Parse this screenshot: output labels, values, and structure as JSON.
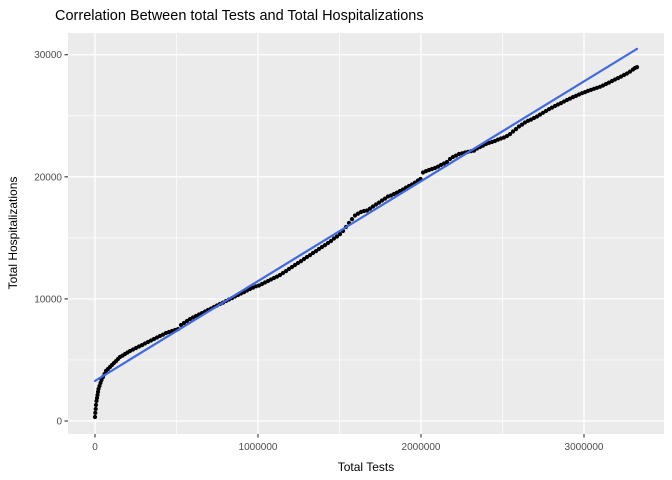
{
  "title": "Correlation Between total Tests and Total Hospitalizations",
  "colors": {
    "panel_background": "#EBEBEB",
    "grid_major": "#FFFFFF",
    "grid_minor": "#FFFFFF",
    "point": "#000000",
    "trend": "#4169E1",
    "tick_mark": "#333333",
    "tick_label": "#4D4D4D",
    "text": "#000000",
    "figure_background": "#FFFFFF"
  },
  "chart_data": {
    "type": "scatter",
    "title": "Correlation Between total Tests and Total Hospitalizations",
    "xlabel": "Total Tests",
    "ylabel": "Total Hospitalizations",
    "legend": "none",
    "grid": true,
    "xlim": [
      -165600,
      3490800
    ],
    "ylim": [
      -1065,
      31780
    ],
    "x_ticks": {
      "values": [
        0,
        1000000,
        2000000,
        3000000
      ],
      "labels": [
        "0",
        "1000000",
        "2000000",
        "3000000"
      ]
    },
    "y_ticks": {
      "values": [
        0,
        10000,
        20000,
        30000
      ],
      "labels": [
        "0",
        "10000",
        "20000",
        "30000"
      ]
    },
    "x_minor": [
      500000,
      1500000,
      2500000
    ],
    "y_minor": [
      5000,
      15000,
      25000
    ],
    "trend_line": {
      "type": "linear",
      "x": [
        0,
        3325200
      ],
      "y": [
        3280,
        30480
      ]
    },
    "points": [
      [
        0,
        330
      ],
      [
        2000,
        660
      ],
      [
        4100,
        980
      ],
      [
        6100,
        1310
      ],
      [
        9200,
        1640
      ],
      [
        12300,
        1880
      ],
      [
        15300,
        2130
      ],
      [
        18400,
        2380
      ],
      [
        21500,
        2620
      ],
      [
        27600,
        2870
      ],
      [
        33700,
        3110
      ],
      [
        39900,
        3360
      ],
      [
        49100,
        3600
      ],
      [
        58300,
        3850
      ],
      [
        67500,
        4100
      ],
      [
        79800,
        4260
      ],
      [
        92000,
        4420
      ],
      [
        104300,
        4590
      ],
      [
        116600,
        4750
      ],
      [
        128800,
        4910
      ],
      [
        141100,
        5080
      ],
      [
        153400,
        5240
      ],
      [
        168700,
        5360
      ],
      [
        184100,
        5490
      ],
      [
        199400,
        5610
      ],
      [
        214700,
        5730
      ],
      [
        233100,
        5860
      ],
      [
        251500,
        5980
      ],
      [
        269900,
        6100
      ],
      [
        288300,
        6220
      ],
      [
        306800,
        6350
      ],
      [
        325200,
        6470
      ],
      [
        343600,
        6590
      ],
      [
        362000,
        6720
      ],
      [
        380400,
        6840
      ],
      [
        398800,
        6960
      ],
      [
        417200,
        7080
      ],
      [
        435600,
        7210
      ],
      [
        454000,
        7290
      ],
      [
        472400,
        7370
      ],
      [
        490800,
        7450
      ],
      [
        509200,
        7530
      ],
      [
        527600,
        7860
      ],
      [
        546000,
        8030
      ],
      [
        564400,
        8190
      ],
      [
        582800,
        8350
      ],
      [
        601200,
        8480
      ],
      [
        619600,
        8600
      ],
      [
        638000,
        8720
      ],
      [
        656400,
        8840
      ],
      [
        674900,
        8970
      ],
      [
        693300,
        9090
      ],
      [
        711700,
        9210
      ],
      [
        730100,
        9340
      ],
      [
        748500,
        9460
      ],
      [
        766900,
        9580
      ],
      [
        785300,
        9700
      ],
      [
        803700,
        9830
      ],
      [
        822100,
        9950
      ],
      [
        840500,
        10070
      ],
      [
        858900,
        10200
      ],
      [
        877300,
        10320
      ],
      [
        895700,
        10440
      ],
      [
        914100,
        10560
      ],
      [
        932500,
        10690
      ],
      [
        950900,
        10810
      ],
      [
        969300,
        10930
      ],
      [
        987800,
        11030
      ],
      [
        1006200,
        11100
      ],
      [
        1024600,
        11220
      ],
      [
        1043000,
        11340
      ],
      [
        1061400,
        11470
      ],
      [
        1079800,
        11590
      ],
      [
        1098200,
        11710
      ],
      [
        1116600,
        11830
      ],
      [
        1135000,
        11960
      ],
      [
        1153400,
        12120
      ],
      [
        1171800,
        12280
      ],
      [
        1190200,
        12450
      ],
      [
        1208600,
        12610
      ],
      [
        1227000,
        12780
      ],
      [
        1245400,
        12940
      ],
      [
        1263800,
        13100
      ],
      [
        1282200,
        13270
      ],
      [
        1300700,
        13430
      ],
      [
        1319100,
        13590
      ],
      [
        1337500,
        13760
      ],
      [
        1355900,
        13920
      ],
      [
        1374300,
        14090
      ],
      [
        1392700,
        14250
      ],
      [
        1411100,
        14410
      ],
      [
        1429500,
        14580
      ],
      [
        1447900,
        14740
      ],
      [
        1466300,
        14950
      ],
      [
        1484700,
        15110
      ],
      [
        1503100,
        15310
      ],
      [
        1521500,
        15560
      ],
      [
        1539900,
        15890
      ],
      [
        1558300,
        16220
      ],
      [
        1576700,
        16540
      ],
      [
        1595100,
        16830
      ],
      [
        1613500,
        16990
      ],
      [
        1631900,
        17120
      ],
      [
        1650300,
        17200
      ],
      [
        1668800,
        17240
      ],
      [
        1687200,
        17400
      ],
      [
        1705600,
        17570
      ],
      [
        1724000,
        17730
      ],
      [
        1742400,
        17890
      ],
      [
        1760800,
        18060
      ],
      [
        1779200,
        18220
      ],
      [
        1797600,
        18390
      ],
      [
        1816000,
        18470
      ],
      [
        1834400,
        18590
      ],
      [
        1852800,
        18710
      ],
      [
        1871200,
        18840
      ],
      [
        1889600,
        18960
      ],
      [
        1908000,
        19120
      ],
      [
        1926400,
        19250
      ],
      [
        1944800,
        19370
      ],
      [
        1963200,
        19530
      ],
      [
        1981700,
        19700
      ],
      [
        1997000,
        19820
      ],
      [
        2012400,
        20350
      ],
      [
        2030800,
        20470
      ],
      [
        2049200,
        20560
      ],
      [
        2067600,
        20640
      ],
      [
        2086000,
        20720
      ],
      [
        2104400,
        20840
      ],
      [
        2122800,
        20970
      ],
      [
        2141200,
        21090
      ],
      [
        2159600,
        21210
      ],
      [
        2178000,
        21460
      ],
      [
        2196400,
        21620
      ],
      [
        2214800,
        21740
      ],
      [
        2233200,
        21870
      ],
      [
        2251600,
        21930
      ],
      [
        2270000,
        21990
      ],
      [
        2288400,
        22050
      ],
      [
        2306900,
        22100
      ],
      [
        2325300,
        22150
      ],
      [
        2343700,
        22320
      ],
      [
        2362100,
        22440
      ],
      [
        2380500,
        22560
      ],
      [
        2398900,
        22690
      ],
      [
        2417300,
        22780
      ],
      [
        2435700,
        22850
      ],
      [
        2454100,
        22930
      ],
      [
        2472500,
        23050
      ],
      [
        2490900,
        23140
      ],
      [
        2509300,
        23220
      ],
      [
        2527700,
        23340
      ],
      [
        2546100,
        23500
      ],
      [
        2564500,
        23710
      ],
      [
        2582900,
        23910
      ],
      [
        2601300,
        24120
      ],
      [
        2619700,
        24280
      ],
      [
        2638100,
        24450
      ],
      [
        2656500,
        24590
      ],
      [
        2674900,
        24690
      ],
      [
        2693300,
        24820
      ],
      [
        2711700,
        24940
      ],
      [
        2730100,
        25100
      ],
      [
        2748500,
        25240
      ],
      [
        2767000,
        25390
      ],
      [
        2785400,
        25540
      ],
      [
        2803800,
        25670
      ],
      [
        2822200,
        25800
      ],
      [
        2840600,
        25920
      ],
      [
        2859000,
        26040
      ],
      [
        2877400,
        26170
      ],
      [
        2895800,
        26290
      ],
      [
        2914200,
        26410
      ],
      [
        2932600,
        26530
      ],
      [
        2951000,
        26630
      ],
      [
        2969400,
        26740
      ],
      [
        2987800,
        26850
      ],
      [
        3006200,
        26940
      ],
      [
        3024600,
        27040
      ],
      [
        3043000,
        27120
      ],
      [
        3061400,
        27210
      ],
      [
        3079800,
        27290
      ],
      [
        3098200,
        27370
      ],
      [
        3116600,
        27480
      ],
      [
        3135000,
        27600
      ],
      [
        3153400,
        27720
      ],
      [
        3171800,
        27850
      ],
      [
        3190200,
        27970
      ],
      [
        3208600,
        28090
      ],
      [
        3227000,
        28210
      ],
      [
        3245400,
        28340
      ],
      [
        3263900,
        28460
      ],
      [
        3282300,
        28620
      ],
      [
        3300700,
        28790
      ],
      [
        3313000,
        28910
      ],
      [
        3325200,
        28990
      ]
    ]
  }
}
